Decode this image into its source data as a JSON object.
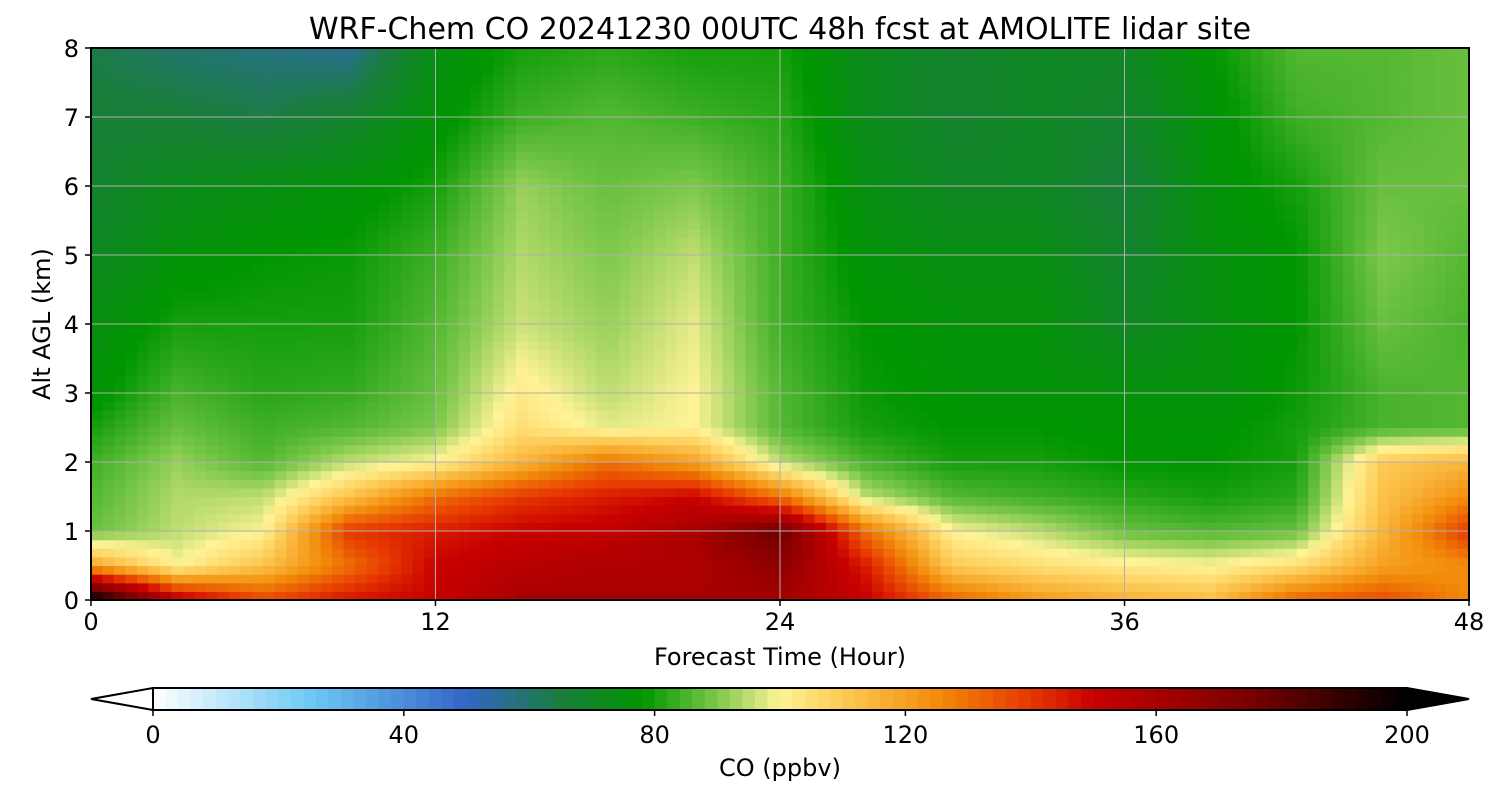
{
  "chart_data": {
    "type": "heatmap",
    "title": "WRF-Chem CO  20241230 00UTC 48h fcst at AMOLITE lidar site",
    "xlabel": "Forecast Time (Hour)",
    "ylabel": "Alt AGL (km)",
    "xlim": [
      0,
      48
    ],
    "ylim": [
      0,
      8
    ],
    "x_ticks": [
      0,
      12,
      24,
      36,
      48
    ],
    "y_ticks": [
      0,
      1,
      2,
      3,
      4,
      5,
      6,
      7,
      8
    ],
    "grid": true,
    "x": [
      0,
      3,
      6,
      9,
      12,
      15,
      18,
      21,
      24,
      27,
      30,
      33,
      36,
      39,
      42,
      45,
      48
    ],
    "y": [
      0.05,
      0.5,
      1,
      1.5,
      2,
      2.5,
      3,
      4,
      5,
      6,
      7,
      8
    ],
    "z": [
      [
        195,
        150,
        135,
        145,
        150,
        160,
        160,
        160,
        162,
        150,
        130,
        120,
        115,
        112,
        130,
        135,
        125
      ],
      [
        120,
        100,
        112,
        130,
        150,
        155,
        158,
        158,
        168,
        145,
        110,
        105,
        102,
        100,
        105,
        120,
        125
      ],
      [
        88,
        95,
        100,
        140,
        145,
        150,
        152,
        160,
        178,
        130,
        100,
        95,
        88,
        86,
        88,
        115,
        140
      ],
      [
        86,
        94,
        95,
        112,
        130,
        140,
        145,
        150,
        130,
        95,
        86,
        84,
        82,
        80,
        82,
        112,
        125
      ],
      [
        84,
        92,
        86,
        95,
        100,
        115,
        130,
        120,
        95,
        85,
        80,
        80,
        78,
        78,
        80,
        110,
        115
      ],
      [
        80,
        88,
        84,
        86,
        90,
        105,
        98,
        100,
        86,
        80,
        78,
        78,
        77,
        77,
        80,
        85,
        86
      ],
      [
        76,
        85,
        82,
        83,
        88,
        102,
        95,
        100,
        86,
        79,
        77,
        76,
        76,
        75,
        79,
        85,
        86
      ],
      [
        74,
        80,
        80,
        80,
        86,
        96,
        92,
        98,
        84,
        78,
        76,
        76,
        70,
        75,
        78,
        88,
        85
      ],
      [
        70,
        76,
        78,
        79,
        84,
        94,
        90,
        95,
        84,
        76,
        74,
        74,
        68,
        75,
        78,
        90,
        86
      ],
      [
        68,
        72,
        74,
        76,
        80,
        92,
        88,
        90,
        84,
        74,
        70,
        70,
        66,
        76,
        80,
        88,
        88
      ],
      [
        66,
        66,
        64,
        68,
        76,
        84,
        86,
        84,
        82,
        72,
        68,
        70,
        68,
        76,
        84,
        86,
        88
      ],
      [
        64,
        60,
        58,
        56,
        74,
        80,
        82,
        80,
        80,
        72,
        68,
        70,
        70,
        78,
        86,
        86,
        88
      ]
    ],
    "colorbar": {
      "label": "CO  (ppbv)",
      "min": 0,
      "max": 200,
      "ticks": [
        0,
        40,
        80,
        120,
        160,
        200
      ],
      "extend": "both",
      "stops": [
        {
          "v": 0,
          "color": "#ffffff"
        },
        {
          "v": 25,
          "color": "#6ec9f5"
        },
        {
          "v": 50,
          "color": "#3265c8"
        },
        {
          "v": 65,
          "color": "#1a7d3c"
        },
        {
          "v": 78,
          "color": "#009600"
        },
        {
          "v": 90,
          "color": "#7dc84b"
        },
        {
          "v": 100,
          "color": "#fff396"
        },
        {
          "v": 110,
          "color": "#fdca55"
        },
        {
          "v": 125,
          "color": "#f28c0a"
        },
        {
          "v": 140,
          "color": "#e63700"
        },
        {
          "v": 150,
          "color": "#c80000"
        },
        {
          "v": 175,
          "color": "#780000"
        },
        {
          "v": 200,
          "color": "#000000"
        }
      ]
    }
  }
}
